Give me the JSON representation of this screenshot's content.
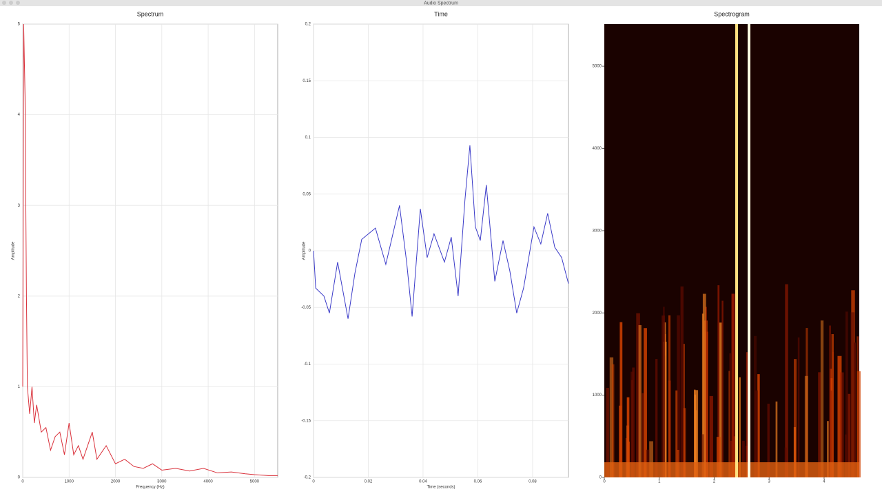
{
  "window_title": "Audio Spectrum",
  "chart_data": [
    {
      "type": "line",
      "title": "Spectrum",
      "xlabel": "Frequency (Hz)",
      "ylabel": "Amplitude",
      "color": "#d9303a",
      "grid": true,
      "x": [
        0,
        20,
        50,
        80,
        100,
        150,
        200,
        250,
        300,
        400,
        500,
        600,
        700,
        800,
        900,
        1000,
        1100,
        1200,
        1300,
        1500,
        1600,
        1800,
        2000,
        2200,
        2400,
        2600,
        2800,
        3000,
        3300,
        3600,
        3900,
        4200,
        4500,
        4800,
        5000,
        5300,
        5500
      ],
      "values": [
        1.0,
        5.0,
        4.2,
        2.0,
        1.0,
        0.7,
        1.0,
        0.6,
        0.8,
        0.5,
        0.55,
        0.3,
        0.45,
        0.5,
        0.25,
        0.6,
        0.25,
        0.35,
        0.2,
        0.5,
        0.2,
        0.35,
        0.15,
        0.2,
        0.12,
        0.1,
        0.15,
        0.08,
        0.1,
        0.07,
        0.1,
        0.05,
        0.06,
        0.04,
        0.03,
        0.02,
        0.02
      ],
      "xlim": [
        0,
        5500
      ],
      "xticks": [
        0,
        1000,
        2000,
        3000,
        4000,
        5000
      ],
      "ylim": [
        0,
        5
      ],
      "yticks": [
        0,
        1,
        2,
        3,
        4,
        5
      ]
    },
    {
      "type": "line",
      "title": "Time",
      "xlabel": "Time (seconds)",
      "ylabel": "Amplitude",
      "color": "#3a3ac8",
      "grid": true,
      "x": [
        0,
        0.0008,
        0.0038,
        0.0058,
        0.0088,
        0.0126,
        0.0151,
        0.0176,
        0.0226,
        0.0264,
        0.0314,
        0.034,
        0.036,
        0.039,
        0.0415,
        0.044,
        0.0478,
        0.0503,
        0.0528,
        0.0553,
        0.0571,
        0.0591,
        0.0609,
        0.0631,
        0.0662,
        0.0692,
        0.0717,
        0.0742,
        0.0767,
        0.0805,
        0.083,
        0.0855,
        0.0881,
        0.0906,
        0.0931
      ],
      "values": [
        0,
        -0.033,
        -0.04,
        -0.055,
        -0.01,
        -0.06,
        -0.02,
        0.01,
        0.02,
        -0.012,
        0.04,
        -0.01,
        -0.058,
        0.037,
        -0.006,
        0.015,
        -0.01,
        0.012,
        -0.04,
        0.045,
        0.093,
        0.021,
        0.009,
        0.058,
        -0.027,
        0.009,
        -0.018,
        -0.055,
        -0.033,
        0.021,
        0.006,
        0.033,
        0.003,
        -0.006,
        -0.029
      ],
      "xlim": [
        0,
        0.0931
      ],
      "xticks": [
        0,
        0.02,
        0.04,
        0.06,
        0.08
      ],
      "ylim": [
        -0.2,
        0.2
      ],
      "yticks": [
        -0.2,
        -0.15,
        -0.1,
        -0.05,
        0,
        0.05,
        0.1,
        0.15,
        0.2
      ]
    },
    {
      "type": "spectrogram",
      "title": "Spectrogram",
      "xlim": [
        0,
        4.64
      ],
      "xticks": [
        0,
        1,
        2,
        3,
        4
      ],
      "ylim": [
        0,
        5512
      ],
      "yticks": [
        0,
        1000,
        2000,
        3000,
        4000,
        5000
      ]
    }
  ]
}
